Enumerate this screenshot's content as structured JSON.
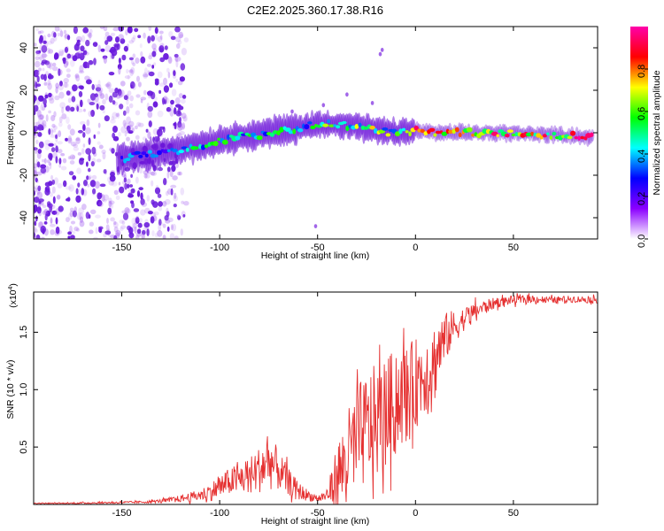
{
  "title": "C2E2.2025.360.17.38.R16",
  "chart_data": [
    {
      "type": "heatmap",
      "description": "Spectrogram of frequency vs height of straight line",
      "xlabel": "Height of straight line (km)",
      "ylabel": "Frequency (Hz)",
      "xlim": [
        -195,
        93
      ],
      "ylim": [
        -50,
        50
      ],
      "xticks": [
        -150,
        -100,
        -50,
        0,
        50
      ],
      "yticks": [
        -40,
        -20,
        0,
        20,
        40
      ],
      "ridge": {
        "x": [
          -150,
          -135,
          -120,
          -110,
          -100,
          -90,
          -80,
          -70,
          -60,
          -50,
          -40,
          -30,
          -20,
          -10,
          0,
          10,
          20,
          30,
          50,
          70,
          90
        ],
        "center_hz": [
          -12,
          -10,
          -8,
          -6,
          -4,
          -2,
          -1,
          1,
          2,
          4,
          4,
          3,
          1,
          0,
          1,
          0,
          0,
          0,
          0,
          -1,
          -2
        ]
      },
      "colorbar": {
        "label": "Normalized spectral amplitude",
        "range": [
          0.0,
          1.0
        ],
        "ticks": [
          "0.0",
          "0.2",
          "0.4",
          "0.6",
          "0.8"
        ],
        "colormap": [
          "#ffffff",
          "#8b00ff",
          "#0000ff",
          "#00ffff",
          "#00ff00",
          "#ffff00",
          "#ff0000",
          "#ff00aa"
        ]
      }
    },
    {
      "type": "line",
      "xlabel": "Height of straight line (km)",
      "ylabel": "SNR (10 * v/v)",
      "scale_label": "(x10",
      "scale_exponent": "4",
      "xlim": [
        -195,
        93
      ],
      "ylim": [
        0,
        1.85
      ],
      "xticks": [
        -150,
        -100,
        -50,
        0,
        50
      ],
      "yticks": [
        0.5,
        1.0,
        1.5
      ],
      "ytick_labels": [
        "0.5",
        "1.0",
        "1.5"
      ],
      "color": "#e53030",
      "series": [
        {
          "name": "SNR",
          "x": [
            -195,
            -180,
            -160,
            -140,
            -130,
            -120,
            -110,
            -105,
            -100,
            -95,
            -90,
            -85,
            -80,
            -75,
            -70,
            -65,
            -60,
            -55,
            -50,
            -45,
            -42,
            -40,
            -38,
            -35,
            -32,
            -30,
            -28,
            -25,
            -22,
            -20,
            -18,
            -15,
            -12,
            -10,
            -8,
            -5,
            -2,
            0,
            2,
            5,
            8,
            10,
            12,
            15,
            20,
            25,
            30,
            35,
            40,
            45,
            50,
            60,
            70,
            80,
            93
          ],
          "mean": [
            0.01,
            0.01,
            0.015,
            0.02,
            0.03,
            0.05,
            0.08,
            0.11,
            0.15,
            0.2,
            0.22,
            0.25,
            0.3,
            0.38,
            0.3,
            0.2,
            0.12,
            0.08,
            0.05,
            0.08,
            0.18,
            0.25,
            0.3,
            0.4,
            0.5,
            0.55,
            0.6,
            0.65,
            0.7,
            0.72,
            0.75,
            0.8,
            0.85,
            0.9,
            0.95,
            0.95,
            1.0,
            1.05,
            1.1,
            1.15,
            1.2,
            1.25,
            1.35,
            1.45,
            1.55,
            1.62,
            1.68,
            1.72,
            1.75,
            1.77,
            1.78,
            1.79,
            1.78,
            1.79,
            1.78
          ],
          "amp": [
            0.005,
            0.005,
            0.008,
            0.01,
            0.015,
            0.03,
            0.05,
            0.08,
            0.1,
            0.12,
            0.14,
            0.16,
            0.2,
            0.25,
            0.18,
            0.12,
            0.08,
            0.05,
            0.03,
            0.06,
            0.2,
            0.3,
            0.35,
            0.4,
            0.45,
            0.45,
            0.48,
            0.5,
            0.5,
            0.5,
            0.5,
            0.48,
            0.48,
            0.45,
            0.45,
            0.45,
            0.42,
            0.4,
            0.38,
            0.35,
            0.35,
            0.35,
            0.3,
            0.22,
            0.15,
            0.1,
            0.08,
            0.06,
            0.05,
            0.04,
            0.04,
            0.035,
            0.03,
            0.03,
            0.03
          ]
        }
      ]
    }
  ]
}
